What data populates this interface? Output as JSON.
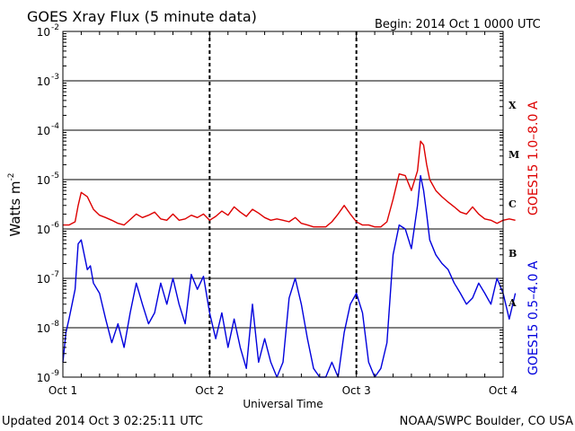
{
  "chart_data": {
    "type": "line",
    "title": "GOES Xray Flux (5 minute data)",
    "begin_label": "Begin:  2014 Oct 1 0000 UTC",
    "ylabel": "Watts m",
    "ylabel_sup": "-2",
    "xlabel": "Universal Time",
    "updated_label": "Updated 2014 Oct  3 02:25:11 UTC",
    "credit_label": "NOAA/SWPC Boulder, CO USA",
    "y_scale": "log",
    "ylim": [
      1e-09,
      0.01
    ],
    "xlim": [
      "2014-10-01 00:00",
      "2014-10-04 00:00"
    ],
    "grid": true,
    "x_ticks": [
      "Oct 1",
      "Oct 2",
      "Oct 3",
      "Oct 4"
    ],
    "y_ticks": [
      {
        "value": 0.01,
        "base": "10",
        "exp": "-2"
      },
      {
        "value": 0.001,
        "base": "10",
        "exp": "-3"
      },
      {
        "value": 0.0001,
        "base": "10",
        "exp": "-4"
      },
      {
        "value": 1e-05,
        "base": "10",
        "exp": "-5"
      },
      {
        "value": 1e-06,
        "base": "10",
        "exp": "-6"
      },
      {
        "value": 1e-07,
        "base": "10",
        "exp": "-7"
      },
      {
        "value": 1e-08,
        "base": "10",
        "exp": "-8"
      },
      {
        "value": 1e-09,
        "base": "10",
        "exp": "-9"
      }
    ],
    "flare_classes": [
      {
        "label": "X",
        "value": 0.00032
      },
      {
        "label": "M",
        "value": 3.2e-05
      },
      {
        "label": "C",
        "value": 3.2e-06
      },
      {
        "label": "B",
        "value": 3.2e-07
      },
      {
        "label": "A",
        "value": 3.2e-08
      }
    ],
    "series": [
      {
        "name": "GOES15 1.0–8.0 A",
        "color": "#dd0000",
        "points": [
          [
            "2014-10-01 00:00",
            1.2e-06
          ],
          [
            "2014-10-01 01:00",
            1.2e-06
          ],
          [
            "2014-10-01 02:00",
            1.4e-06
          ],
          [
            "2014-10-01 02:30",
            3e-06
          ],
          [
            "2014-10-01 03:00",
            5.5e-06
          ],
          [
            "2014-10-01 04:00",
            4.5e-06
          ],
          [
            "2014-10-01 05:00",
            2.5e-06
          ],
          [
            "2014-10-01 06:00",
            1.9e-06
          ],
          [
            "2014-10-01 07:00",
            1.7e-06
          ],
          [
            "2014-10-01 08:00",
            1.5e-06
          ],
          [
            "2014-10-01 09:00",
            1.3e-06
          ],
          [
            "2014-10-01 10:00",
            1.2e-06
          ],
          [
            "2014-10-01 12:00",
            2e-06
          ],
          [
            "2014-10-01 13:00",
            1.7e-06
          ],
          [
            "2014-10-01 14:00",
            1.9e-06
          ],
          [
            "2014-10-01 15:00",
            2.2e-06
          ],
          [
            "2014-10-01 16:00",
            1.6e-06
          ],
          [
            "2014-10-01 17:00",
            1.5e-06
          ],
          [
            "2014-10-01 18:00",
            2e-06
          ],
          [
            "2014-10-01 19:00",
            1.5e-06
          ],
          [
            "2014-10-01 20:00",
            1.6e-06
          ],
          [
            "2014-10-01 21:00",
            1.9e-06
          ],
          [
            "2014-10-01 22:00",
            1.7e-06
          ],
          [
            "2014-10-01 23:00",
            2e-06
          ],
          [
            "2014-10-02 00:00",
            1.5e-06
          ],
          [
            "2014-10-02 01:00",
            1.8e-06
          ],
          [
            "2014-10-02 02:00",
            2.3e-06
          ],
          [
            "2014-10-02 03:00",
            1.9e-06
          ],
          [
            "2014-10-02 04:00",
            2.8e-06
          ],
          [
            "2014-10-02 05:00",
            2.2e-06
          ],
          [
            "2014-10-02 06:00",
            1.8e-06
          ],
          [
            "2014-10-02 07:00",
            2.5e-06
          ],
          [
            "2014-10-02 08:00",
            2.1e-06
          ],
          [
            "2014-10-02 09:00",
            1.7e-06
          ],
          [
            "2014-10-02 10:00",
            1.5e-06
          ],
          [
            "2014-10-02 11:00",
            1.6e-06
          ],
          [
            "2014-10-02 12:00",
            1.5e-06
          ],
          [
            "2014-10-02 13:00",
            1.4e-06
          ],
          [
            "2014-10-02 14:00",
            1.7e-06
          ],
          [
            "2014-10-02 15:00",
            1.3e-06
          ],
          [
            "2014-10-02 16:00",
            1.2e-06
          ],
          [
            "2014-10-02 17:00",
            1.1e-06
          ],
          [
            "2014-10-02 19:00",
            1.1e-06
          ],
          [
            "2014-10-02 20:00",
            1.4e-06
          ],
          [
            "2014-10-02 21:00",
            2e-06
          ],
          [
            "2014-10-02 22:00",
            3e-06
          ],
          [
            "2014-10-02 23:00",
            2e-06
          ],
          [
            "2014-10-03 00:00",
            1.4e-06
          ],
          [
            "2014-10-03 01:00",
            1.2e-06
          ],
          [
            "2014-10-03 02:00",
            1.2e-06
          ],
          [
            "2014-10-03 03:00",
            1.1e-06
          ],
          [
            "2014-10-03 04:00",
            1.1e-06
          ],
          [
            "2014-10-03 05:00",
            1.4e-06
          ],
          [
            "2014-10-03 06:00",
            4e-06
          ],
          [
            "2014-10-03 07:00",
            1.3e-05
          ],
          [
            "2014-10-03 08:00",
            1.2e-05
          ],
          [
            "2014-10-03 09:00",
            6e-06
          ],
          [
            "2014-10-03 10:00",
            1.5e-05
          ],
          [
            "2014-10-03 10:30",
            6e-05
          ],
          [
            "2014-10-03 11:00",
            5e-05
          ],
          [
            "2014-10-03 11:30",
            2e-05
          ],
          [
            "2014-10-03 12:00",
            1e-05
          ],
          [
            "2014-10-03 13:00",
            6e-06
          ],
          [
            "2014-10-03 14:00",
            4.5e-06
          ],
          [
            "2014-10-03 15:00",
            3.5e-06
          ],
          [
            "2014-10-03 16:00",
            2.8e-06
          ],
          [
            "2014-10-03 17:00",
            2.2e-06
          ],
          [
            "2014-10-03 18:00",
            2e-06
          ],
          [
            "2014-10-03 19:00",
            2.8e-06
          ],
          [
            "2014-10-03 20:00",
            2e-06
          ],
          [
            "2014-10-03 21:00",
            1.6e-06
          ],
          [
            "2014-10-03 22:00",
            1.5e-06
          ],
          [
            "2014-10-03 23:00",
            1.3e-06
          ],
          [
            "2014-10-04 00:00",
            1.5e-06
          ],
          [
            "2014-10-04 01:00",
            1.6e-06
          ],
          [
            "2014-10-04 02:00",
            1.5e-06
          ]
        ]
      },
      {
        "name": "GOES15 0.5–4.0 A",
        "color": "#0000dd",
        "points": [
          [
            "2014-10-01 00:00",
            2e-09
          ],
          [
            "2014-10-01 00:30",
            8e-09
          ],
          [
            "2014-10-01 01:00",
            1.5e-08
          ],
          [
            "2014-10-01 01:30",
            3e-08
          ],
          [
            "2014-10-01 02:00",
            6e-08
          ],
          [
            "2014-10-01 02:30",
            5e-07
          ],
          [
            "2014-10-01 03:00",
            6e-07
          ],
          [
            "2014-10-01 03:30",
            3e-07
          ],
          [
            "2014-10-01 04:00",
            1.5e-07
          ],
          [
            "2014-10-01 04:30",
            1.8e-07
          ],
          [
            "2014-10-01 05:00",
            8e-08
          ],
          [
            "2014-10-01 06:00",
            5e-08
          ],
          [
            "2014-10-01 07:00",
            1.5e-08
          ],
          [
            "2014-10-01 08:00",
            5e-09
          ],
          [
            "2014-10-01 09:00",
            1.2e-08
          ],
          [
            "2014-10-01 10:00",
            4e-09
          ],
          [
            "2014-10-01 11:00",
            2e-08
          ],
          [
            "2014-10-01 12:00",
            8e-08
          ],
          [
            "2014-10-01 13:00",
            3e-08
          ],
          [
            "2014-10-01 14:00",
            1.2e-08
          ],
          [
            "2014-10-01 15:00",
            2e-08
          ],
          [
            "2014-10-01 16:00",
            8e-08
          ],
          [
            "2014-10-01 17:00",
            3e-08
          ],
          [
            "2014-10-01 18:00",
            1e-07
          ],
          [
            "2014-10-01 19:00",
            3e-08
          ],
          [
            "2014-10-01 20:00",
            1.2e-08
          ],
          [
            "2014-10-01 21:00",
            1.2e-07
          ],
          [
            "2014-10-01 22:00",
            6e-08
          ],
          [
            "2014-10-01 23:00",
            1.1e-07
          ],
          [
            "2014-10-02 00:00",
            2e-08
          ],
          [
            "2014-10-02 01:00",
            6e-09
          ],
          [
            "2014-10-02 02:00",
            2e-08
          ],
          [
            "2014-10-02 03:00",
            4e-09
          ],
          [
            "2014-10-02 04:00",
            1.5e-08
          ],
          [
            "2014-10-02 05:00",
            4e-09
          ],
          [
            "2014-10-02 06:00",
            1.5e-09
          ],
          [
            "2014-10-02 07:00",
            3e-08
          ],
          [
            "2014-10-02 08:00",
            2e-09
          ],
          [
            "2014-10-02 09:00",
            6e-09
          ],
          [
            "2014-10-02 10:00",
            2e-09
          ],
          [
            "2014-10-02 11:00",
            1e-09
          ],
          [
            "2014-10-02 12:00",
            2e-09
          ],
          [
            "2014-10-02 13:00",
            4e-08
          ],
          [
            "2014-10-02 14:00",
            1e-07
          ],
          [
            "2014-10-02 15:00",
            3e-08
          ],
          [
            "2014-10-02 16:00",
            6e-09
          ],
          [
            "2014-10-02 17:00",
            1.5e-09
          ],
          [
            "2014-10-02 18:00",
            1e-09
          ],
          [
            "2014-10-02 19:00",
            1e-09
          ],
          [
            "2014-10-02 20:00",
            2e-09
          ],
          [
            "2014-10-02 21:00",
            1e-09
          ],
          [
            "2014-10-02 22:00",
            8e-09
          ],
          [
            "2014-10-02 23:00",
            3e-08
          ],
          [
            "2014-10-03 00:00",
            5e-08
          ],
          [
            "2014-10-03 01:00",
            2e-08
          ],
          [
            "2014-10-03 02:00",
            2e-09
          ],
          [
            "2014-10-03 03:00",
            1e-09
          ],
          [
            "2014-10-03 04:00",
            1.5e-09
          ],
          [
            "2014-10-03 05:00",
            5e-09
          ],
          [
            "2014-10-03 06:00",
            3e-07
          ],
          [
            "2014-10-03 07:00",
            1.2e-06
          ],
          [
            "2014-10-03 08:00",
            1e-06
          ],
          [
            "2014-10-03 09:00",
            4e-07
          ],
          [
            "2014-10-03 10:00",
            3e-06
          ],
          [
            "2014-10-03 10:30",
            1.2e-05
          ],
          [
            "2014-10-03 11:00",
            6e-06
          ],
          [
            "2014-10-03 11:30",
            2e-06
          ],
          [
            "2014-10-03 12:00",
            6e-07
          ],
          [
            "2014-10-03 13:00",
            3e-07
          ],
          [
            "2014-10-03 14:00",
            2e-07
          ],
          [
            "2014-10-03 15:00",
            1.5e-07
          ],
          [
            "2014-10-03 16:00",
            8e-08
          ],
          [
            "2014-10-03 17:00",
            5e-08
          ],
          [
            "2014-10-03 18:00",
            3e-08
          ],
          [
            "2014-10-03 19:00",
            4e-08
          ],
          [
            "2014-10-03 20:00",
            8e-08
          ],
          [
            "2014-10-03 21:00",
            5e-08
          ],
          [
            "2014-10-03 22:00",
            3e-08
          ],
          [
            "2014-10-03 23:00",
            1e-07
          ],
          [
            "2014-10-04 00:00",
            5e-08
          ],
          [
            "2014-10-04 01:00",
            1.5e-08
          ],
          [
            "2014-10-04 02:00",
            5e-08
          ]
        ]
      }
    ]
  }
}
